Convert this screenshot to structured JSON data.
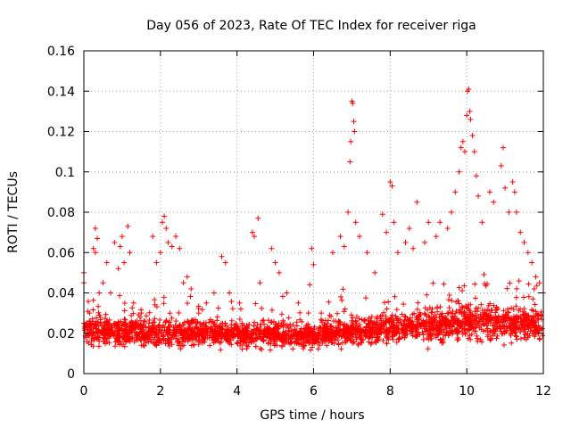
{
  "chart_data": {
    "type": "scatter",
    "title": "Day 056 of 2023, Rate Of TEC Index for receiver riga",
    "xlabel": "GPS time / hours",
    "ylabel": "ROTI / TECUs",
    "xlim": [
      0,
      12
    ],
    "ylim": [
      0,
      0.16
    ],
    "x_ticks": [
      0,
      2,
      4,
      6,
      8,
      10,
      12
    ],
    "x_tick_labels": [
      "0",
      "2",
      "4",
      "6",
      "8",
      "10",
      "12"
    ],
    "y_ticks": [
      0,
      0.02,
      0.04,
      0.06,
      0.08,
      0.1,
      0.12,
      0.14,
      0.16
    ],
    "y_tick_labels": [
      "0",
      "0.02",
      "0.04",
      "0.06",
      "0.08",
      "0.1",
      "0.12",
      "0.14",
      "0.16"
    ],
    "grid": true,
    "marker": "+",
    "series_color": "#ff0000",
    "series": [
      {
        "name": "ROTI",
        "points": [
          [
            0.0,
            0.045
          ],
          [
            0.0,
            0.05
          ],
          [
            0.05,
            0.018
          ],
          [
            0.1,
            0.02
          ],
          [
            0.15,
            0.03
          ],
          [
            0.25,
            0.062
          ],
          [
            0.3,
            0.06
          ],
          [
            0.3,
            0.072
          ],
          [
            0.35,
            0.067
          ],
          [
            0.4,
            0.04
          ],
          [
            0.5,
            0.045
          ],
          [
            0.6,
            0.055
          ],
          [
            0.7,
            0.04
          ],
          [
            0.8,
            0.065
          ],
          [
            0.9,
            0.052
          ],
          [
            0.95,
            0.063
          ],
          [
            1.0,
            0.068
          ],
          [
            1.05,
            0.055
          ],
          [
            1.15,
            0.073
          ],
          [
            1.2,
            0.06
          ],
          [
            1.3,
            0.035
          ],
          [
            1.5,
            0.03
          ],
          [
            1.7,
            0.025
          ],
          [
            1.8,
            0.068
          ],
          [
            1.9,
            0.055
          ],
          [
            2.0,
            0.06
          ],
          [
            2.05,
            0.075
          ],
          [
            2.1,
            0.078
          ],
          [
            2.15,
            0.072
          ],
          [
            2.2,
            0.065
          ],
          [
            2.3,
            0.063
          ],
          [
            2.4,
            0.068
          ],
          [
            2.5,
            0.062
          ],
          [
            2.6,
            0.045
          ],
          [
            2.7,
            0.048
          ],
          [
            2.8,
            0.042
          ],
          [
            3.0,
            0.03
          ],
          [
            3.2,
            0.035
          ],
          [
            3.4,
            0.04
          ],
          [
            3.6,
            0.058
          ],
          [
            3.7,
            0.055
          ],
          [
            3.8,
            0.04
          ],
          [
            4.1,
            0.032
          ],
          [
            4.4,
            0.07
          ],
          [
            4.45,
            0.068
          ],
          [
            4.55,
            0.077
          ],
          [
            4.6,
            0.045
          ],
          [
            4.9,
            0.062
          ],
          [
            5.0,
            0.055
          ],
          [
            5.1,
            0.05
          ],
          [
            5.3,
            0.04
          ],
          [
            5.6,
            0.035
          ],
          [
            5.9,
            0.044
          ],
          [
            5.95,
            0.062
          ],
          [
            6.0,
            0.054
          ],
          [
            6.2,
            0.03
          ],
          [
            6.5,
            0.06
          ],
          [
            6.7,
            0.068
          ],
          [
            6.8,
            0.063
          ],
          [
            6.9,
            0.08
          ],
          [
            6.95,
            0.105
          ],
          [
            6.97,
            0.115
          ],
          [
            7.0,
            0.135
          ],
          [
            7.02,
            0.134
          ],
          [
            7.05,
            0.125
          ],
          [
            7.07,
            0.12
          ],
          [
            7.1,
            0.075
          ],
          [
            7.2,
            0.068
          ],
          [
            7.4,
            0.06
          ],
          [
            7.6,
            0.05
          ],
          [
            7.8,
            0.079
          ],
          [
            7.9,
            0.07
          ],
          [
            8.0,
            0.095
          ],
          [
            8.05,
            0.093
          ],
          [
            8.1,
            0.075
          ],
          [
            8.2,
            0.06
          ],
          [
            8.4,
            0.065
          ],
          [
            8.5,
            0.072
          ],
          [
            8.6,
            0.062
          ],
          [
            8.7,
            0.085
          ],
          [
            8.9,
            0.065
          ],
          [
            9.0,
            0.075
          ],
          [
            9.2,
            0.068
          ],
          [
            9.3,
            0.075
          ],
          [
            9.5,
            0.072
          ],
          [
            9.6,
            0.08
          ],
          [
            9.7,
            0.09
          ],
          [
            9.8,
            0.1
          ],
          [
            9.85,
            0.112
          ],
          [
            9.9,
            0.115
          ],
          [
            9.95,
            0.11
          ],
          [
            10.0,
            0.128
          ],
          [
            10.02,
            0.14
          ],
          [
            10.05,
            0.141
          ],
          [
            10.08,
            0.13
          ],
          [
            10.1,
            0.126
          ],
          [
            10.15,
            0.118
          ],
          [
            10.2,
            0.11
          ],
          [
            10.25,
            0.098
          ],
          [
            10.3,
            0.088
          ],
          [
            10.4,
            0.075
          ],
          [
            10.6,
            0.09
          ],
          [
            10.7,
            0.085
          ],
          [
            10.9,
            0.103
          ],
          [
            10.95,
            0.112
          ],
          [
            11.0,
            0.092
          ],
          [
            11.1,
            0.08
          ],
          [
            11.2,
            0.095
          ],
          [
            11.25,
            0.09
          ],
          [
            11.3,
            0.08
          ],
          [
            11.4,
            0.07
          ],
          [
            11.5,
            0.065
          ],
          [
            11.6,
            0.06
          ],
          [
            11.7,
            0.055
          ],
          [
            11.8,
            0.048
          ],
          [
            11.9,
            0.045
          ],
          [
            12.0,
            0.04
          ]
        ]
      }
    ],
    "band_profile": {
      "description": "hourly typical ROTI level for the dense scatter band (median, spread)",
      "hours": [
        0,
        1,
        2,
        3,
        4,
        5,
        6,
        7,
        8,
        9,
        10,
        11,
        12
      ],
      "median": [
        0.022,
        0.021,
        0.02,
        0.02,
        0.02,
        0.019,
        0.019,
        0.021,
        0.022,
        0.024,
        0.026,
        0.025,
        0.024
      ],
      "spread": [
        0.012,
        0.011,
        0.011,
        0.011,
        0.01,
        0.01,
        0.01,
        0.011,
        0.013,
        0.014,
        0.015,
        0.014,
        0.013
      ],
      "min": [
        0.008,
        0.008,
        0.006,
        0.008,
        0.006,
        0.006,
        0.007,
        0.007,
        0.006,
        0.005,
        0.005,
        0.006,
        0.006
      ]
    }
  }
}
